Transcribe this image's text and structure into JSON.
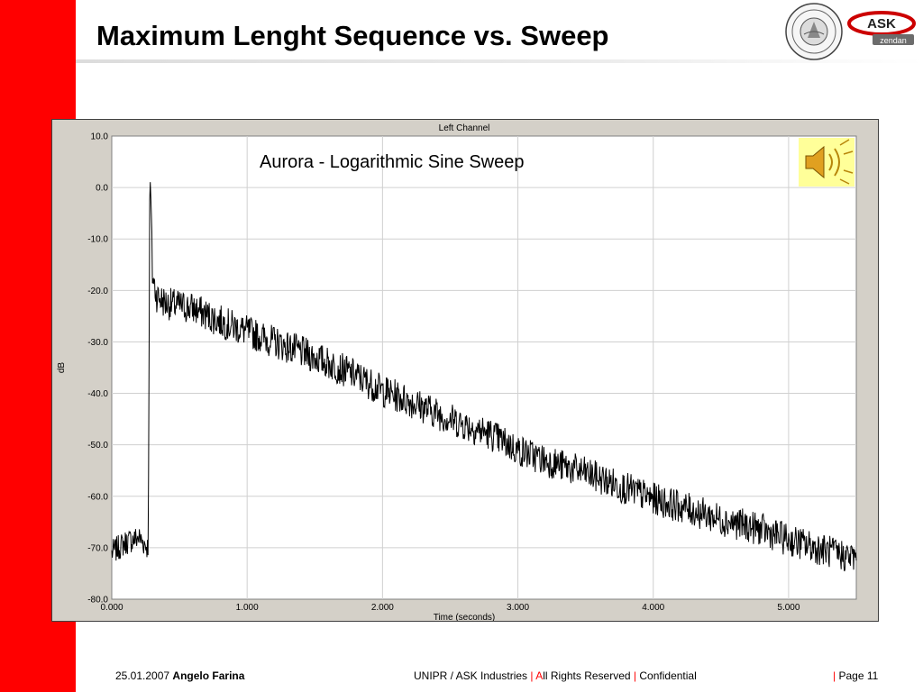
{
  "header": {
    "title": "Maximum Lenght Sequence vs. Sweep"
  },
  "colors": {
    "accent_red": "#ff0000",
    "chart_frame": "#d4d0c8",
    "grid": "#d0d0d0",
    "trace": "#000000",
    "speaker_box": "#ffff99"
  },
  "icons": {
    "seal": "university-seal-icon",
    "logo": "ask-industries-logo-icon",
    "speaker": "speaker-sound-icon"
  },
  "logo_text": {
    "brand": "ASK",
    "sub": "zendan"
  },
  "chart_data": {
    "type": "line",
    "title": "Left Channel",
    "annotation": "Aurora - Logarithmic Sine Sweep",
    "xlabel": "Time (seconds)",
    "ylabel": "dB",
    "xlim": [
      0,
      5.5
    ],
    "ylim": [
      -80,
      10
    ],
    "xticks": [
      "0.000",
      "1.000",
      "2.000",
      "3.000",
      "4.000",
      "5.000"
    ],
    "yticks": [
      "10.0",
      "0.0",
      "-10.0",
      "-20.0",
      "-30.0",
      "-40.0",
      "-50.0",
      "-60.0",
      "-70.0",
      "-80.0"
    ],
    "grid": true,
    "series": [
      {
        "x": [
          0.0,
          0.1,
          0.2,
          0.27,
          0.28,
          0.29,
          0.3,
          0.33,
          0.4,
          0.5,
          0.6,
          0.8,
          1.0,
          1.2,
          1.5,
          1.8,
          2.0,
          2.2,
          2.5,
          2.8,
          3.0,
          3.2,
          3.5,
          3.8,
          4.0,
          4.2,
          4.5,
          4.8,
          5.0,
          5.2,
          5.4,
          5.5
        ],
        "y": [
          -71.0,
          -69.0,
          -68.0,
          -70.0,
          0.0,
          -3.0,
          -17.0,
          -21.0,
          -22.5,
          -23.0,
          -23.5,
          -26.0,
          -28.0,
          -30.0,
          -33.0,
          -36.5,
          -39.5,
          -41.5,
          -45.0,
          -48.0,
          -51.0,
          -53.0,
          -55.5,
          -58.5,
          -60.5,
          -62.0,
          -64.5,
          -66.5,
          -68.5,
          -70.0,
          -71.5,
          -72.0
        ]
      }
    ]
  },
  "footer": {
    "date": "25.01.2007",
    "author": "Angelo Farina",
    "org": "UNIPR / ASK Industries",
    "sep": "|",
    "a_letter": "A",
    "rights_rest": "ll Rights Reserved",
    "confidential": "Confidential",
    "page": "Page 11"
  }
}
